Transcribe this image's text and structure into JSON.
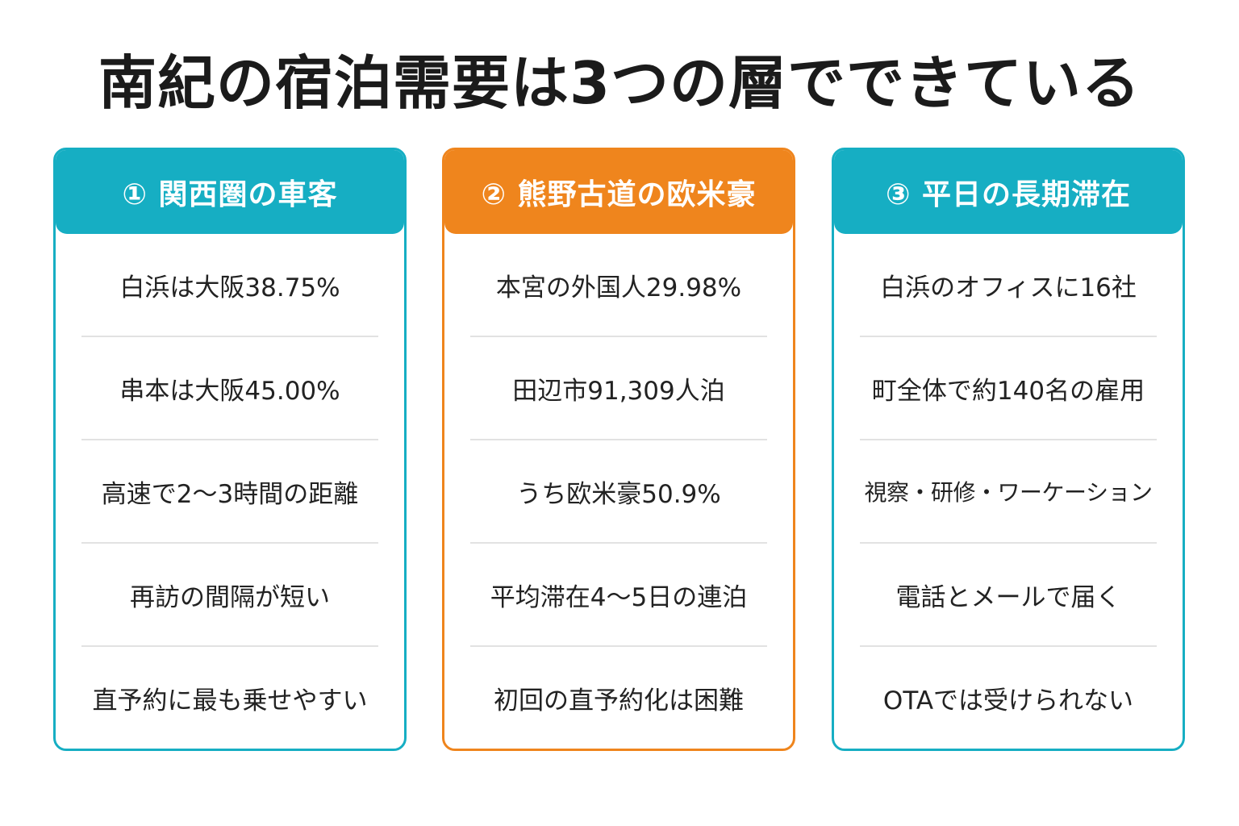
{
  "title": "南紀の宿泊需要は3つの層でできている",
  "colors": {
    "teal": "#16aec3",
    "orange": "#ef851d"
  },
  "cards": [
    {
      "header": "① 関西圏の車客",
      "accent": "teal",
      "items": [
        "白浜は大阪38.75%",
        "串本は大阪45.00%",
        "高速で2〜3時間の距離",
        "再訪の間隔が短い",
        "直予約に最も乗せやすい"
      ]
    },
    {
      "header": "② 熊野古道の欧米豪",
      "accent": "orange",
      "items": [
        "本宮の外国人29.98%",
        "田辺市91,309人泊",
        "うち欧米豪50.9%",
        "平均滞在4〜5日の連泊",
        "初回の直予約化は困難"
      ]
    },
    {
      "header": "③ 平日の長期滞在",
      "accent": "teal",
      "items": [
        "白浜のオフィスに16社",
        "町全体で約140名の雇用",
        "視察・研修・ワーケーション",
        "電話とメールで届く",
        "OTAでは受けられない"
      ]
    }
  ]
}
